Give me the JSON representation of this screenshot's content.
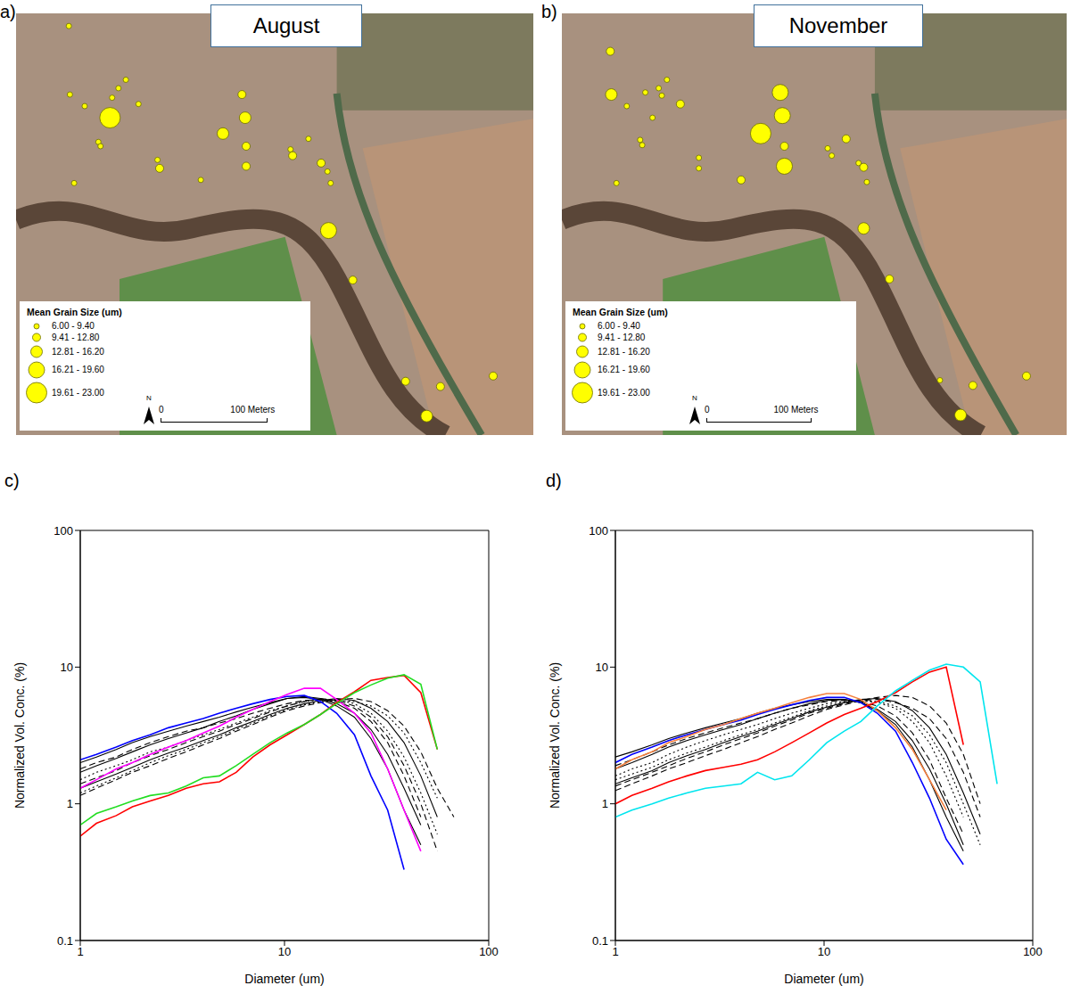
{
  "chart_data": [
    {
      "type": "scatter",
      "panel": "a)",
      "title": "August",
      "xlim": [
        0,
        490
      ],
      "ylim": [
        0,
        400
      ],
      "tick_labels": false,
      "color": "#ffff00",
      "marker": "circle",
      "size_legend": {
        "title": "Mean Grain Size (um)",
        "bins": [
          6,
          9.4,
          12.8,
          16.2,
          19.6,
          23
        ],
        "labels": [
          "6.00 - 9.40",
          "9.41 - 12.80",
          "12.81 - 16.20",
          "16.21 - 19.60",
          "19.61 - 23.00"
        ]
      },
      "scale_bar": {
        "length": 100,
        "labels": [
          "0",
          "100 Meters"
        ]
      },
      "north_arrow": "N",
      "x": [
        50,
        51,
        65,
        91,
        97,
        104,
        116,
        89,
        78,
        80,
        134,
        136,
        55,
        175,
        196,
        214,
        217,
        218,
        218,
        262,
        260,
        277,
        289,
        295,
        298,
        296,
        319,
        369,
        402,
        389,
        452
      ],
      "y": [
        388,
        323,
        312,
        320,
        329,
        337,
        314,
        301,
        278,
        274,
        261,
        253,
        239,
        242,
        286,
        323,
        301,
        274,
        255,
        265,
        271,
        281,
        258,
        250,
        239,
        194,
        147,
        51,
        46,
        18,
        56
      ],
      "grain_size": [
        8,
        8,
        8,
        8,
        8,
        8,
        8,
        21,
        8,
        8,
        8,
        11,
        8,
        8,
        15,
        11,
        14,
        11,
        11,
        11,
        8,
        8,
        11,
        8,
        8,
        18,
        11,
        11,
        11,
        14,
        11
      ]
    },
    {
      "type": "scatter",
      "panel": "b)",
      "title": "November",
      "xlim": [
        0,
        490
      ],
      "ylim": [
        0,
        400
      ],
      "tick_labels": false,
      "color": "#ffff00",
      "marker": "circle",
      "size_legend": {
        "title": "Mean Grain Size (um)",
        "bins": [
          6,
          9.4,
          12.8,
          16.2,
          19.6,
          23
        ],
        "labels": [
          "6.00 - 9.40",
          "9.41 - 12.80",
          "12.81 - 16.20",
          "16.21 - 19.60",
          "19.61 - 23.00"
        ]
      },
      "scale_bar": {
        "length": 100,
        "labels": [
          "0",
          "100 Meters"
        ]
      },
      "north_arrow": "N",
      "x": [
        47,
        48,
        63,
        81,
        94,
        102,
        97,
        88,
        115,
        76,
        78,
        133,
        133,
        53,
        174,
        212,
        214,
        193,
        216,
        216,
        276,
        258,
        262,
        288,
        293,
        296,
        293,
        318,
        367,
        399,
        451,
        387
      ],
      "y": [
        364,
        323,
        312,
        325,
        329,
        337,
        322,
        301,
        314,
        280,
        275,
        263,
        253,
        239,
        242,
        325,
        303,
        286,
        274,
        255,
        281,
        272,
        265,
        258,
        254,
        240,
        196,
        148,
        52,
        47,
        56,
        19
      ],
      "grain_size": [
        11,
        14,
        8,
        8,
        8,
        8,
        8,
        8,
        11,
        8,
        8,
        8,
        8,
        8,
        11,
        18,
        18,
        21,
        11,
        18,
        11,
        8,
        8,
        8,
        11,
        8,
        14,
        11,
        8,
        11,
        11,
        14
      ]
    },
    {
      "type": "line",
      "panel": "c)",
      "x_label": "Diameter (um)",
      "y_label": "Normalized Vol. Conc. (%)",
      "log": true,
      "xlim": [
        1,
        100
      ],
      "ylim": [
        0.1,
        100
      ],
      "xticks": [
        1,
        10,
        100
      ],
      "yticks": [
        0.1,
        1,
        10,
        100
      ],
      "x": [
        1,
        1.2,
        1.5,
        1.8,
        2.2,
        2.7,
        3.3,
        4,
        4.8,
        5.8,
        7,
        8.5,
        10.3,
        12.5,
        15,
        18,
        22,
        26.5,
        32,
        38.5,
        46.5,
        56,
        67.5
      ],
      "series": [
        {
          "color": "#000000",
          "line_style": "solid",
          "values": [
            2.0,
            2.2,
            2.5,
            2.8,
            3.1,
            3.4,
            3.7,
            4.0,
            4.3,
            4.7,
            5.1,
            5.5,
            5.9,
            6.0,
            5.8,
            5.2,
            4.3,
            3.0,
            1.8,
            0.9,
            0.5,
            null,
            null
          ]
        },
        {
          "color": "#000000",
          "line_style": "dashed",
          "values": [
            1.8,
            2.0,
            2.2,
            2.5,
            2.8,
            3.1,
            3.4,
            3.6,
            3.9,
            4.2,
            4.6,
            5.0,
            5.4,
            5.7,
            5.8,
            5.6,
            5.0,
            4.0,
            2.8,
            1.6,
            0.8,
            null,
            null
          ]
        },
        {
          "color": "#000000",
          "line_style": "dotted",
          "values": [
            1.5,
            1.7,
            1.9,
            2.1,
            2.4,
            2.6,
            2.9,
            3.2,
            3.5,
            3.9,
            4.3,
            4.8,
            5.2,
            5.6,
            5.8,
            5.8,
            5.4,
            4.6,
            3.4,
            2.2,
            1.2,
            0.6,
            null
          ]
        },
        {
          "color": "#000000",
          "line_style": "solid",
          "values": [
            1.3,
            1.45,
            1.65,
            1.85,
            2.1,
            2.35,
            2.6,
            2.9,
            3.2,
            3.6,
            4.0,
            4.5,
            5.0,
            5.4,
            5.7,
            5.9,
            5.7,
            5.0,
            4.0,
            2.8,
            1.6,
            0.8,
            null
          ]
        },
        {
          "color": "#000000",
          "line_style": "dashed",
          "values": [
            1.15,
            1.3,
            1.5,
            1.7,
            1.9,
            2.15,
            2.4,
            2.7,
            3.0,
            3.4,
            3.8,
            4.3,
            4.8,
            5.2,
            5.5,
            5.8,
            5.9,
            5.6,
            4.8,
            3.7,
            2.4,
            1.3,
            0.8
          ]
        },
        {
          "color": "#000000",
          "line_style": "solid",
          "values": [
            1.7,
            1.9,
            2.15,
            2.4,
            2.7,
            3.0,
            3.3,
            3.6,
            4.0,
            4.4,
            4.9,
            5.4,
            5.9,
            6.1,
            5.9,
            5.4,
            4.6,
            3.5,
            2.3,
            1.3,
            0.7,
            null,
            null
          ]
        },
        {
          "color": "#000000",
          "line_style": "dotted",
          "values": [
            1.2,
            1.35,
            1.55,
            1.75,
            2.0,
            2.25,
            2.5,
            2.8,
            3.1,
            3.5,
            3.9,
            4.4,
            4.9,
            5.3,
            5.6,
            5.7,
            5.6,
            5.2,
            4.4,
            3.3,
            2.0,
            1.1,
            null
          ]
        },
        {
          "color": "#000000",
          "line_style": "dashed",
          "values": [
            1.4,
            1.55,
            1.75,
            2.0,
            2.25,
            2.5,
            2.8,
            3.1,
            3.4,
            3.8,
            4.2,
            4.7,
            5.2,
            5.6,
            5.9,
            5.7,
            5.2,
            4.3,
            3.1,
            1.9,
            1.0,
            0.45,
            null
          ]
        },
        {
          "color": "#0000ff",
          "line_style": "solid",
          "values": [
            2.1,
            2.3,
            2.6,
            2.9,
            3.2,
            3.6,
            3.9,
            4.2,
            4.6,
            5.0,
            5.4,
            5.8,
            6.1,
            6.2,
            5.6,
            4.6,
            3.2,
            1.6,
            0.9,
            0.33,
            null,
            null,
            null
          ]
        },
        {
          "color": "#ff00ff",
          "line_style": "solid",
          "values": [
            1.3,
            1.5,
            1.8,
            2.0,
            2.3,
            2.6,
            2.9,
            3.3,
            3.7,
            4.3,
            4.9,
            5.6,
            6.3,
            7.0,
            7.0,
            5.8,
            4.6,
            3.3,
            1.8,
            0.9,
            0.45,
            null,
            null
          ]
        },
        {
          "color": "#ff0000",
          "line_style": "solid",
          "values": [
            0.58,
            0.72,
            0.82,
            0.95,
            1.05,
            1.15,
            1.3,
            1.4,
            1.45,
            1.7,
            2.2,
            2.7,
            3.2,
            3.8,
            4.5,
            5.5,
            6.6,
            8.0,
            8.4,
            8.7,
            6.5,
            2.5,
            null
          ]
        },
        {
          "color": "#22dd22",
          "line_style": "solid",
          "values": [
            0.7,
            0.85,
            0.95,
            1.05,
            1.15,
            1.2,
            1.35,
            1.55,
            1.6,
            1.9,
            2.3,
            2.8,
            3.3,
            3.8,
            4.5,
            5.4,
            6.5,
            7.4,
            8.3,
            8.8,
            7.5,
            2.5,
            null
          ]
        }
      ]
    },
    {
      "type": "line",
      "panel": "d)",
      "x_label": "Diameter (um)",
      "y_label": "Normalized Vol. Conc. (%)",
      "log": true,
      "xlim": [
        1,
        100
      ],
      "ylim": [
        0.1,
        100
      ],
      "xticks": [
        1,
        10,
        100
      ],
      "yticks": [
        0.1,
        1,
        10,
        100
      ],
      "x": [
        1,
        1.2,
        1.5,
        1.8,
        2.2,
        2.7,
        3.3,
        4,
        4.8,
        5.8,
        7,
        8.5,
        10.3,
        12.5,
        15,
        18,
        22,
        26.5,
        32,
        38.5,
        46.5,
        56,
        67.5
      ],
      "series": [
        {
          "color": "#000000",
          "line_style": "solid",
          "values": [
            2.2,
            2.4,
            2.7,
            3.0,
            3.3,
            3.6,
            3.9,
            4.2,
            4.6,
            5.0,
            5.3,
            5.6,
            5.8,
            5.8,
            5.5,
            4.8,
            3.8,
            2.6,
            1.5,
            0.8,
            0.45,
            null,
            null
          ]
        },
        {
          "color": "#000000",
          "line_style": "dashed",
          "values": [
            1.9,
            2.1,
            2.4,
            2.7,
            3.0,
            3.3,
            3.6,
            3.9,
            4.2,
            4.6,
            5.0,
            5.3,
            5.6,
            5.7,
            5.6,
            5.2,
            4.4,
            3.3,
            2.1,
            1.1,
            0.6,
            null,
            null
          ]
        },
        {
          "color": "#000000",
          "line_style": "dotted",
          "values": [
            1.6,
            1.8,
            2.0,
            2.3,
            2.6,
            2.9,
            3.2,
            3.5,
            3.8,
            4.2,
            4.6,
            5.0,
            5.4,
            5.6,
            5.7,
            5.5,
            5.0,
            4.0,
            2.8,
            1.6,
            0.8,
            null,
            null
          ]
        },
        {
          "color": "#000000",
          "line_style": "solid",
          "values": [
            1.4,
            1.55,
            1.75,
            2.0,
            2.25,
            2.5,
            2.8,
            3.1,
            3.4,
            3.8,
            4.2,
            4.7,
            5.1,
            5.5,
            5.8,
            5.9,
            5.6,
            4.8,
            3.6,
            2.3,
            1.2,
            0.6,
            null
          ]
        },
        {
          "color": "#000000",
          "line_style": "dashed",
          "values": [
            1.25,
            1.4,
            1.6,
            1.8,
            2.0,
            2.25,
            2.5,
            2.8,
            3.1,
            3.5,
            3.9,
            4.4,
            4.9,
            5.3,
            5.7,
            6.0,
            6.2,
            6.0,
            5.2,
            3.9,
            2.3,
            1.0,
            null
          ]
        },
        {
          "color": "#000000",
          "line_style": "dotted",
          "values": [
            1.5,
            1.65,
            1.85,
            2.1,
            2.35,
            2.6,
            2.9,
            3.2,
            3.5,
            3.9,
            4.3,
            4.8,
            5.2,
            5.5,
            5.7,
            5.6,
            5.2,
            4.4,
            3.2,
            2.0,
            1.0,
            0.5,
            null
          ]
        },
        {
          "color": "#000000",
          "line_style": "solid",
          "values": [
            1.8,
            2.0,
            2.3,
            2.6,
            2.9,
            3.2,
            3.5,
            3.8,
            4.2,
            4.6,
            5.0,
            5.4,
            5.7,
            5.8,
            5.5,
            4.9,
            4.0,
            2.9,
            1.8,
            1.0,
            0.5,
            null,
            null
          ]
        },
        {
          "color": "#000000",
          "line_style": "dashed",
          "values": [
            1.35,
            1.5,
            1.7,
            1.9,
            2.15,
            2.4,
            2.7,
            3.0,
            3.3,
            3.7,
            4.1,
            4.6,
            5.0,
            5.4,
            5.7,
            5.8,
            5.5,
            5.0,
            4.2,
            3.0,
            1.7,
            0.8,
            null
          ]
        },
        {
          "color": "#0000ff",
          "line_style": "solid",
          "values": [
            2.0,
            2.3,
            2.6,
            2.9,
            3.2,
            3.5,
            3.8,
            4.1,
            4.5,
            4.9,
            5.3,
            5.7,
            6.0,
            6.0,
            5.5,
            4.6,
            3.4,
            2.0,
            1.1,
            0.55,
            0.36,
            null,
            null
          ]
        },
        {
          "color": "#f5803e",
          "line_style": "solid",
          "values": [
            1.8,
            2.1,
            2.4,
            2.8,
            3.1,
            3.5,
            3.8,
            4.2,
            4.6,
            5.0,
            5.5,
            6.0,
            6.4,
            6.4,
            5.8,
            4.8,
            3.6,
            2.5,
            1.5,
            0.9,
            null,
            null,
            null
          ]
        },
        {
          "color": "#ff0000",
          "line_style": "solid",
          "values": [
            1.0,
            1.15,
            1.3,
            1.45,
            1.6,
            1.75,
            1.85,
            1.95,
            2.1,
            2.4,
            2.8,
            3.3,
            3.9,
            4.5,
            5.0,
            5.6,
            6.5,
            7.8,
            9.2,
            10.0,
            2.7,
            null,
            null
          ]
        },
        {
          "color": "#00e5ee",
          "line_style": "solid",
          "values": [
            0.8,
            0.9,
            1.0,
            1.1,
            1.2,
            1.3,
            1.35,
            1.4,
            1.7,
            1.5,
            1.6,
            2.1,
            2.8,
            3.4,
            4.0,
            5.2,
            6.7,
            8.0,
            9.5,
            10.5,
            10.0,
            7.8,
            1.4
          ]
        }
      ]
    }
  ]
}
